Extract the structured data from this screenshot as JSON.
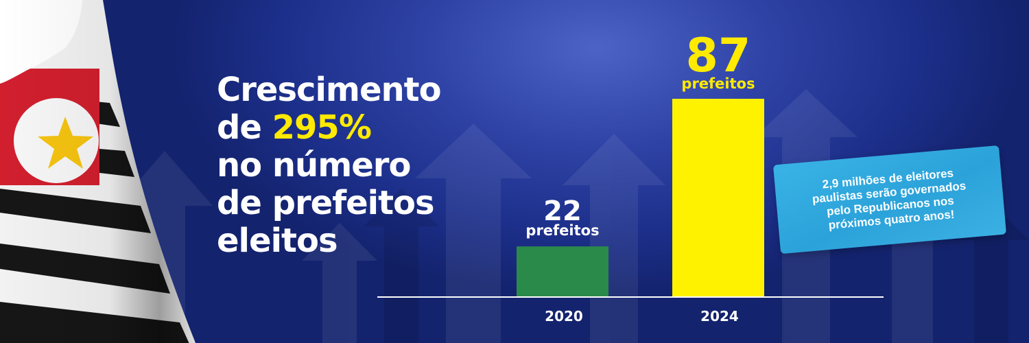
{
  "headline": {
    "line1": "Crescimento",
    "line2_prefix": "de ",
    "line2_highlight": "295%",
    "line3": "no número",
    "line4": "de prefeitos",
    "line5": "eleitos"
  },
  "chart_data": {
    "type": "bar",
    "categories": [
      "2020",
      "2024"
    ],
    "values": [
      22,
      87
    ],
    "data_labels": [
      "22",
      "87"
    ],
    "unit_label": "prefeitos",
    "bar_colors": [
      "#2a8a4a",
      "#fff200"
    ],
    "value_label_colors": [
      "#ffffff",
      "#ffea00"
    ],
    "ylim": [
      0,
      100
    ],
    "grid": false,
    "legend": "none"
  },
  "note": {
    "lines": [
      "2,9 milhões de eleitores",
      "paulistas serão governados",
      "pelo Republicanos nos",
      "próximos quatro anos!"
    ]
  },
  "colors": {
    "background": "#1c2f8a",
    "highlight": "#ffea00",
    "note_bg": "#2ba2d9"
  }
}
